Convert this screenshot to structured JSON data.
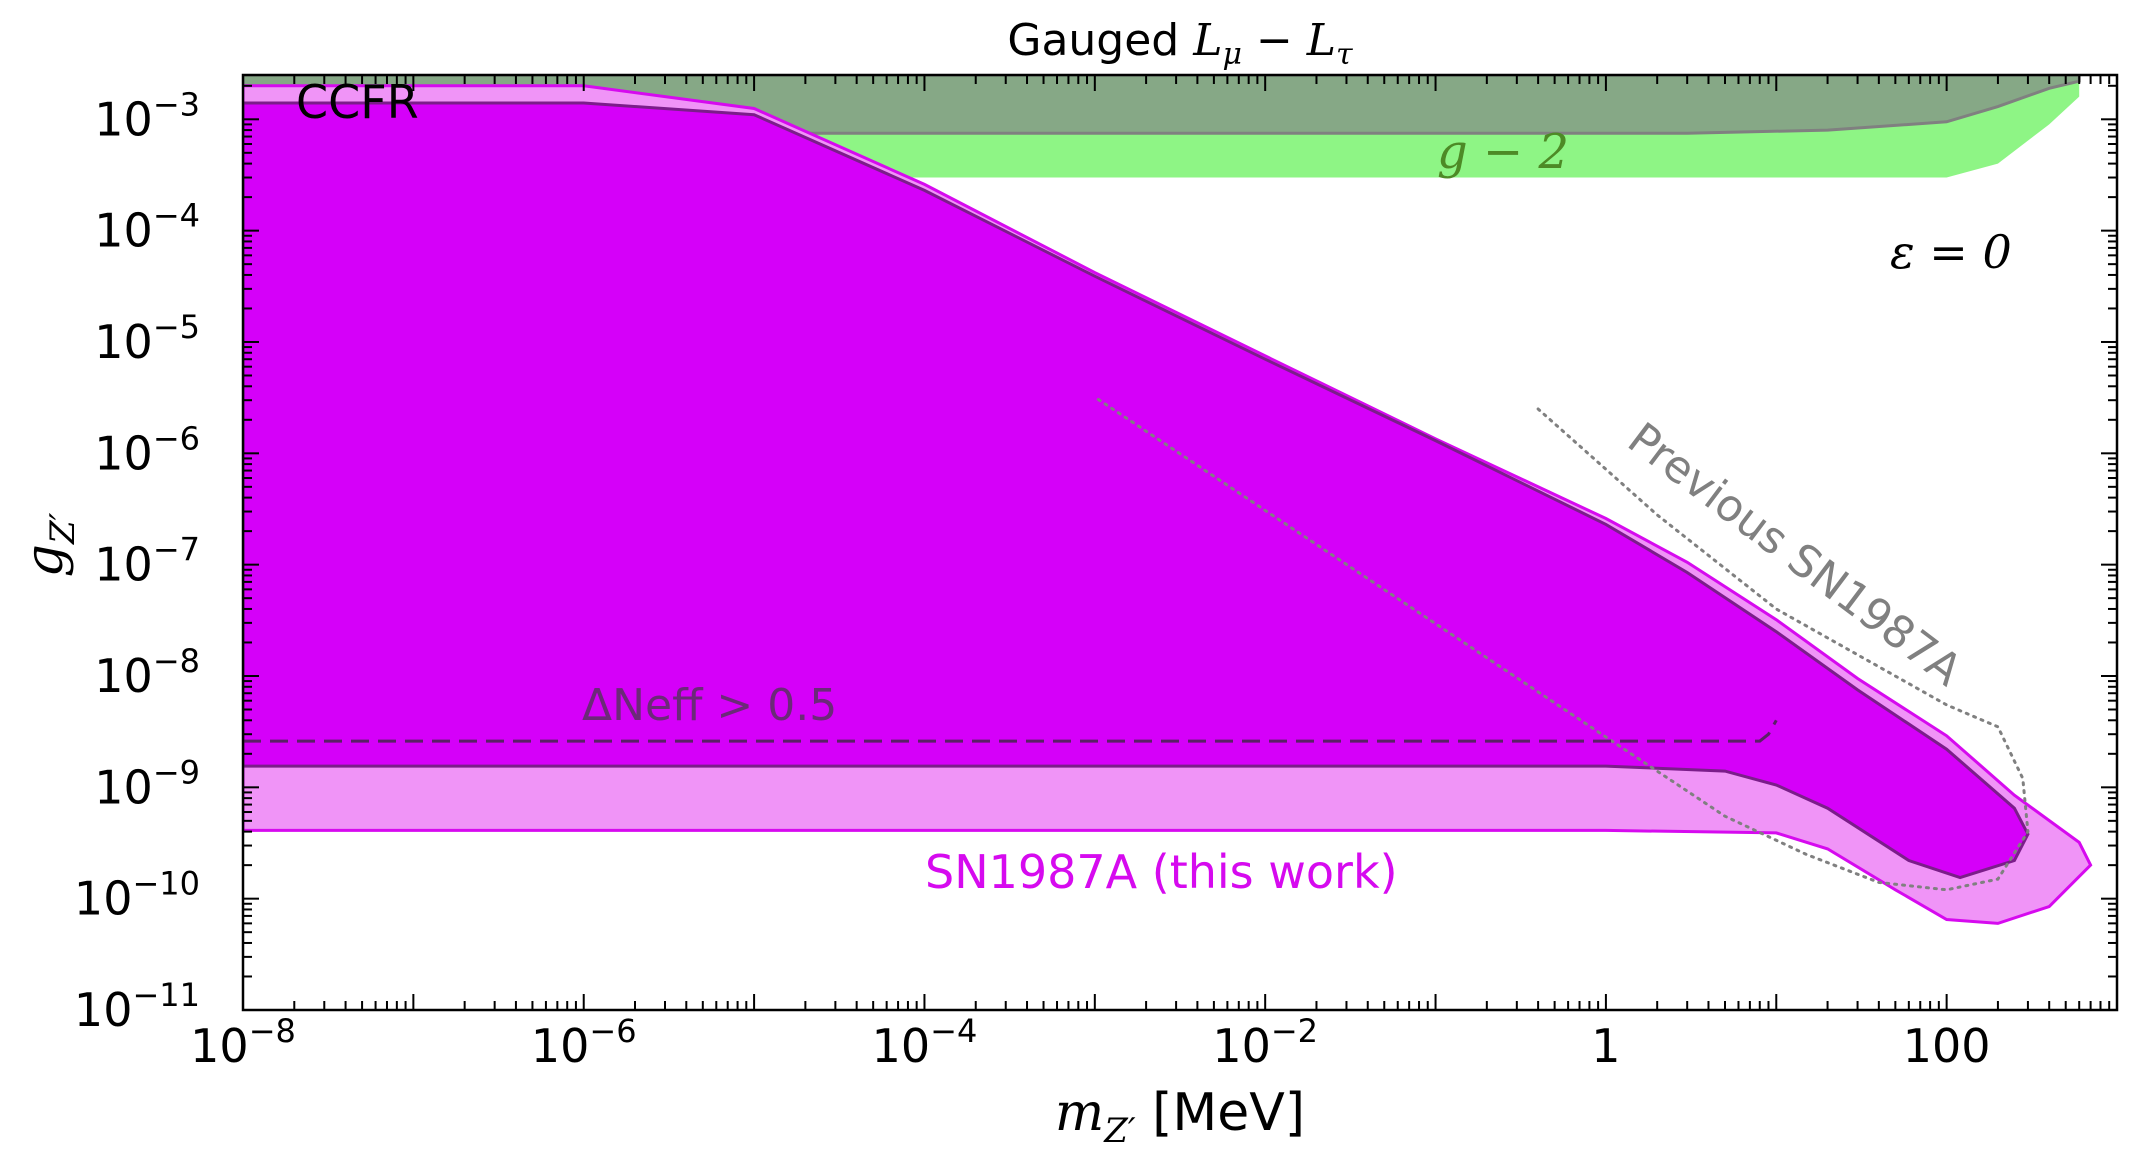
{
  "chart_data": {
    "type": "area",
    "title": "Gauged Lμ − Lτ",
    "title_parts": {
      "prefix": "Gauged ",
      "L1": "L",
      "sub1": "μ",
      "op": " − ",
      "L2": "L",
      "sub2": "τ"
    },
    "xlabel": "m_Z′ [MeV]",
    "xlabel_parts": {
      "main": "m",
      "sub": "Z′",
      "unit": " [MeV]"
    },
    "ylabel": "g_Z′",
    "ylabel_parts": {
      "main": "g",
      "sub": "Z′"
    },
    "x_scale": "log",
    "y_scale": "log",
    "xlim": [
      1e-08,
      1000
    ],
    "ylim": [
      1e-11,
      0.0025
    ],
    "x_ticks": [
      {
        "value": 1e-08,
        "base": "10",
        "exp": "−8"
      },
      {
        "value": 1e-06,
        "base": "10",
        "exp": "−6"
      },
      {
        "value": 0.0001,
        "base": "10",
        "exp": "−4"
      },
      {
        "value": 0.01,
        "base": "10",
        "exp": "−2"
      },
      {
        "value": 1,
        "base": "1",
        "exp": ""
      },
      {
        "value": 100,
        "base": "100",
        "exp": ""
      }
    ],
    "y_ticks": [
      {
        "value": 0.001,
        "base": "10",
        "exp": "−3"
      },
      {
        "value": 0.0001,
        "base": "10",
        "exp": "−4"
      },
      {
        "value": 1e-05,
        "base": "10",
        "exp": "−5"
      },
      {
        "value": 1e-06,
        "base": "10",
        "exp": "−6"
      },
      {
        "value": 1e-07,
        "base": "10",
        "exp": "−7"
      },
      {
        "value": 1e-08,
        "base": "10",
        "exp": "−8"
      },
      {
        "value": 1e-09,
        "base": "10",
        "exp": "−9"
      },
      {
        "value": 1e-10,
        "base": "10",
        "exp": "−10"
      },
      {
        "value": 1e-11,
        "base": "10",
        "exp": "−11"
      }
    ],
    "grid": false,
    "regions": [
      {
        "label": "g − 2",
        "color": "#8ef585",
        "label_color": "#4d8a26",
        "boundary": [
          [
            1e-08,
            0.0003
          ],
          [
            100,
            0.0003
          ],
          [
            200,
            0.0004
          ],
          [
            400,
            0.0009
          ],
          [
            600,
            0.0016
          ],
          [
            600,
            0.0025
          ],
          [
            1e-08,
            0.0025
          ]
        ]
      },
      {
        "label": "CCFR",
        "color": "#86a886",
        "edge_color": "#808080",
        "label_color": "#000000",
        "boundary": [
          [
            1e-08,
            0.00075
          ],
          [
            3,
            0.00075
          ],
          [
            20,
            0.0008
          ],
          [
            100,
            0.00095
          ],
          [
            200,
            0.0013
          ],
          [
            400,
            0.0019
          ],
          [
            600,
            0.0022
          ],
          [
            600,
            0.0025
          ],
          [
            1e-08,
            0.0025
          ]
        ]
      },
      {
        "label": "SN1987A (this work)",
        "color": "#f094f7",
        "edge_color": "#d60aef",
        "label_color": "#d60aef",
        "boundary": [
          [
            1e-08,
            0.002
          ],
          [
            1e-06,
            0.002
          ],
          [
            1e-05,
            0.00125
          ],
          [
            0.0001,
            0.00026
          ],
          [
            0.001,
            4.2e-05
          ],
          [
            0.01,
            7.5e-06
          ],
          [
            0.1,
            1.35e-06
          ],
          [
            1,
            2.6e-07
          ],
          [
            3,
            1.05e-07
          ],
          [
            10,
            3.2e-08
          ],
          [
            30,
            9.5e-09
          ],
          [
            100,
            2.9e-09
          ],
          [
            250,
            8.5e-10
          ],
          [
            600,
            3.2e-10
          ],
          [
            700,
            2e-10
          ],
          [
            400,
            8.5e-11
          ],
          [
            200,
            6e-11
          ],
          [
            100,
            6.5e-11
          ],
          [
            50,
            1.2e-10
          ],
          [
            20,
            2.8e-10
          ],
          [
            10,
            3.9e-10
          ],
          [
            1,
            4.1e-10
          ],
          [
            1e-08,
            4.1e-10
          ]
        ]
      },
      {
        "label": "",
        "color": "#d500f9",
        "edge_color": "#7b1d8a",
        "boundary": [
          [
            1e-08,
            0.0014
          ],
          [
            1e-06,
            0.0014
          ],
          [
            1e-05,
            0.0011
          ],
          [
            0.0001,
            0.00023
          ],
          [
            0.001,
            3.9e-05
          ],
          [
            0.01,
            7e-06
          ],
          [
            0.1,
            1.3e-06
          ],
          [
            1,
            2.3e-07
          ],
          [
            3,
            8.5e-08
          ],
          [
            10,
            2.5e-08
          ],
          [
            30,
            7.5e-09
          ],
          [
            100,
            2.2e-09
          ],
          [
            250,
            6.5e-10
          ],
          [
            300,
            3.8e-10
          ],
          [
            250,
            2.2e-10
          ],
          [
            120,
            1.55e-10
          ],
          [
            60,
            2.2e-10
          ],
          [
            20,
            6.5e-10
          ],
          [
            10,
            1.05e-09
          ],
          [
            5,
            1.4e-09
          ],
          [
            1,
            1.55e-09
          ],
          [
            1e-08,
            1.55e-09
          ]
        ]
      }
    ],
    "lines": [
      {
        "label": "Previous SN1987A",
        "color": "#808080",
        "style": "dotted",
        "points": [
          [
            0.4,
            2.5e-06
          ],
          [
            2,
            2.8e-07
          ],
          [
            10,
            4e-08
          ],
          [
            100,
            5.5e-09
          ],
          [
            200,
            3.5e-09
          ],
          [
            280,
            1.2e-09
          ],
          [
            300,
            4e-10
          ],
          [
            200,
            1.5e-10
          ],
          [
            100,
            1.2e-10
          ],
          [
            40,
            1.4e-10
          ],
          [
            15,
            2.5e-10
          ],
          [
            5,
            5.5e-10
          ],
          [
            0.001,
            3.2e-06
          ]
        ]
      },
      {
        "label": "ΔNeff > 0.5",
        "color": "#5a2066",
        "label_color": "#6b2a78",
        "style": "dashed",
        "points": [
          [
            1e-08,
            2.6e-09
          ],
          [
            8,
            2.6e-09
          ],
          [
            9,
            3e-09
          ],
          [
            10,
            4e-09
          ]
        ]
      }
    ],
    "annotations": [
      {
        "name": "epsilon-label",
        "text": "ε = 0",
        "x": 300,
        "y": 0.00012,
        "color": "#000000"
      }
    ]
  }
}
